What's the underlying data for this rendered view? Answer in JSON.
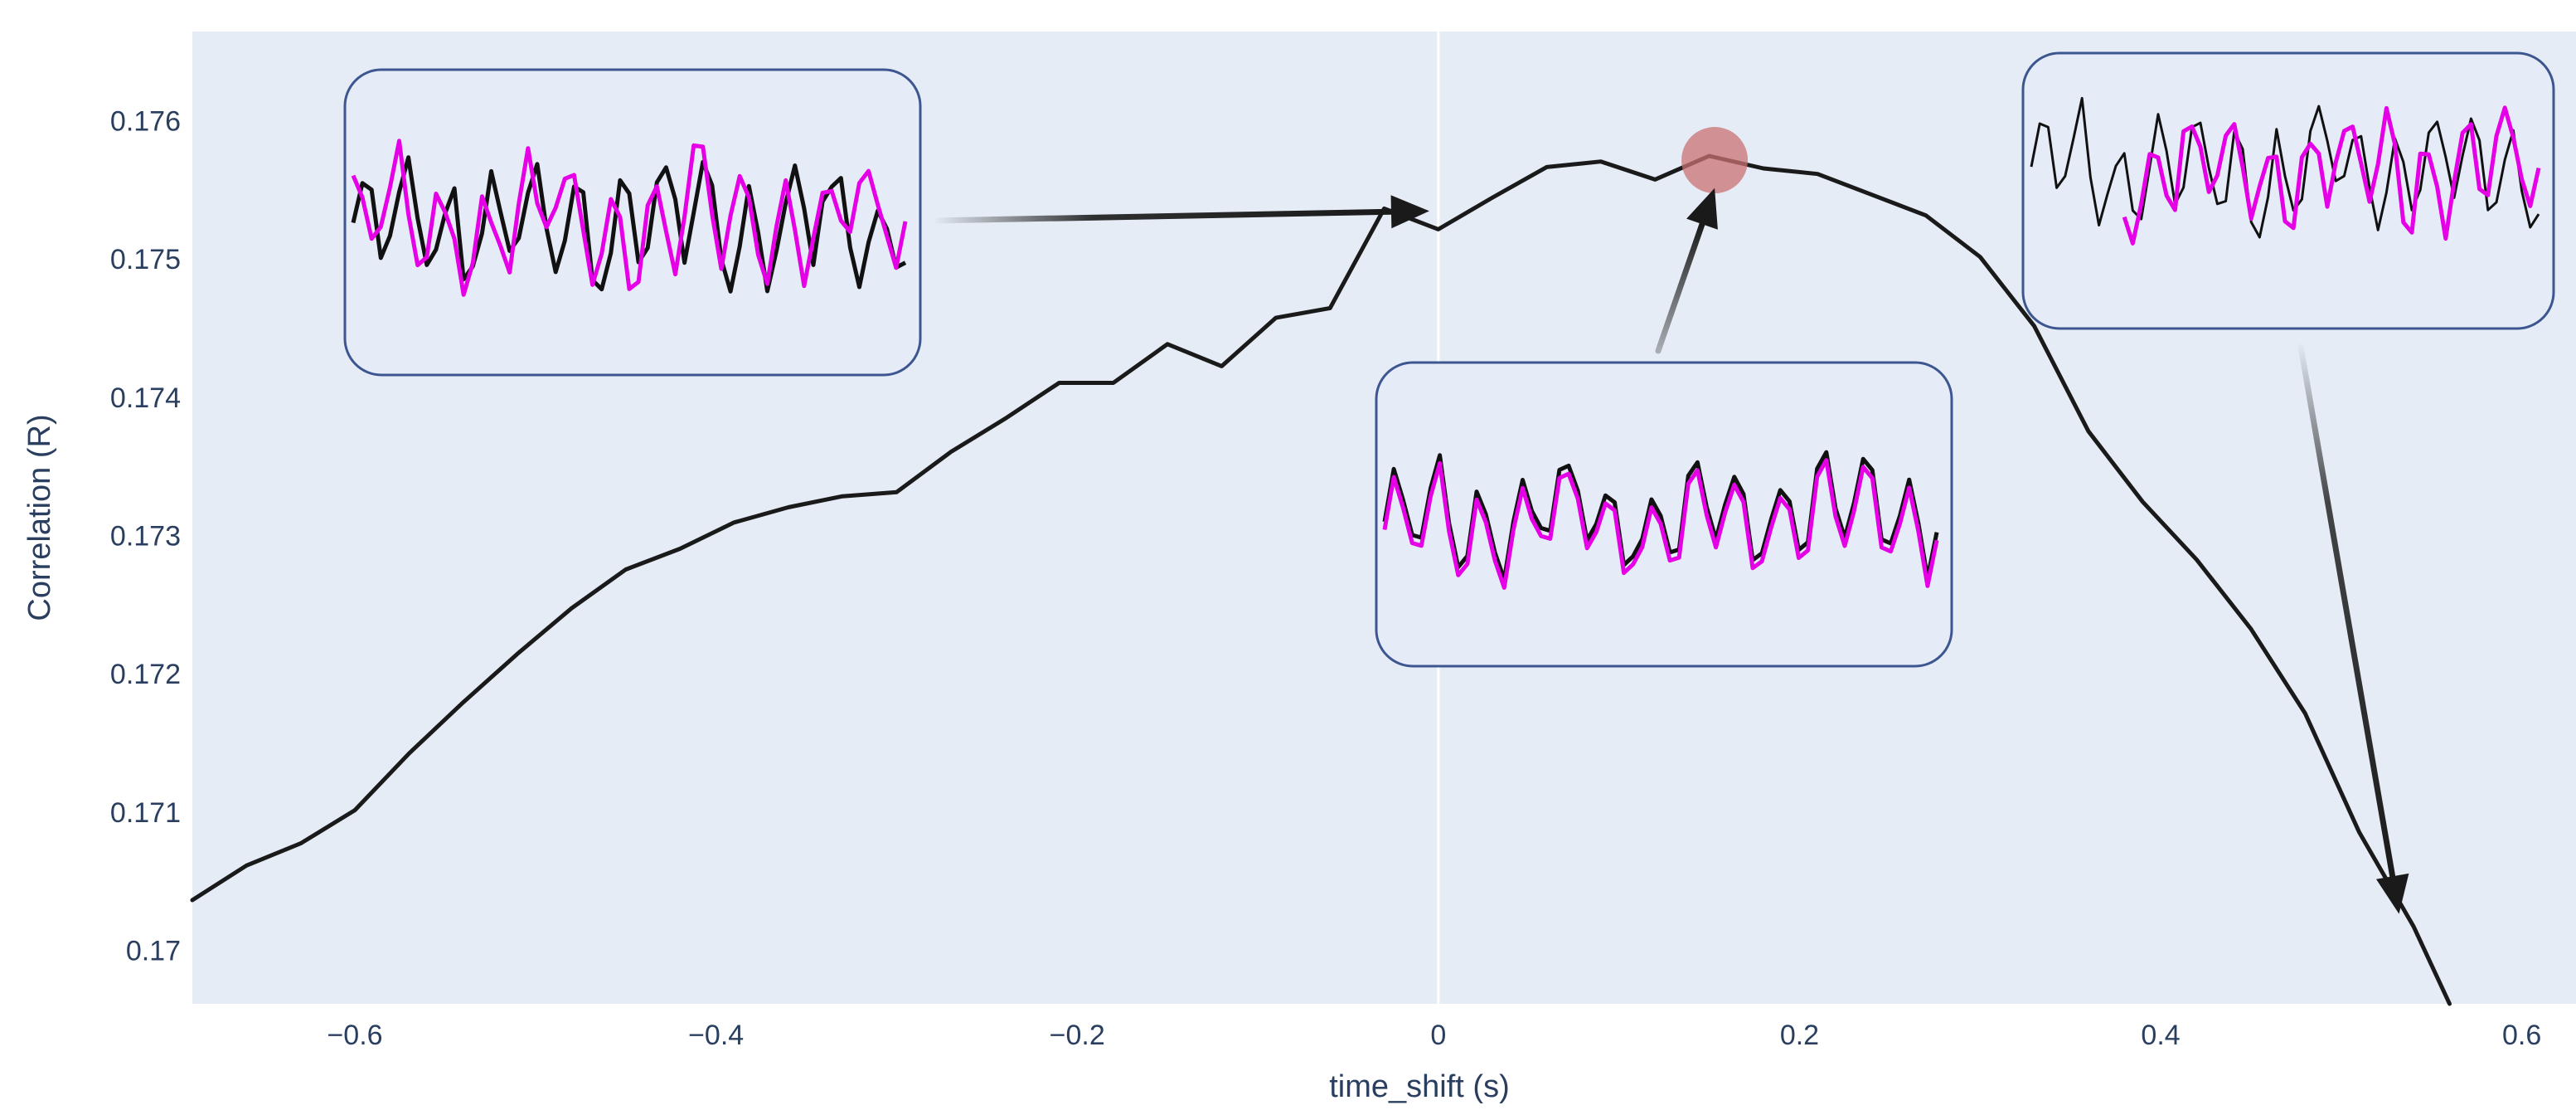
{
  "chart_data": {
    "type": "line",
    "title": "",
    "xlabel": "time_shift (s)",
    "ylabel": "Correlation (R)",
    "xlim": [
      -0.69,
      0.63
    ],
    "ylim": [
      0.16962,
      0.17665
    ],
    "grid": true,
    "background": "#e5ecf6",
    "line_color": "#1a1a1a",
    "x_ticks": [
      {
        "value": -0.6,
        "label": "−0.6"
      },
      {
        "value": -0.4,
        "label": "−0.4"
      },
      {
        "value": -0.2,
        "label": "−0.2"
      },
      {
        "value": 0,
        "label": "0"
      },
      {
        "value": 0.2,
        "label": "0.2"
      },
      {
        "value": 0.4,
        "label": "0.4"
      },
      {
        "value": 0.6,
        "label": "0.6"
      }
    ],
    "y_ticks": [
      {
        "value": 0.17,
        "label": "0.17"
      },
      {
        "value": 0.171,
        "label": "0.171"
      },
      {
        "value": 0.172,
        "label": "0.172"
      },
      {
        "value": 0.173,
        "label": "0.173"
      },
      {
        "value": 0.174,
        "label": "0.174"
      },
      {
        "value": 0.175,
        "label": "0.175"
      },
      {
        "value": 0.176,
        "label": "0.176"
      }
    ],
    "series": [
      {
        "x": [
          -0.69,
          -0.66,
          -0.63,
          -0.6,
          -0.57,
          -0.54,
          -0.51,
          -0.48,
          -0.45,
          -0.42,
          -0.39,
          -0.36,
          -0.33,
          -0.3,
          -0.27,
          -0.24,
          -0.21,
          -0.18,
          -0.15,
          -0.12,
          -0.09,
          -0.06,
          -0.03,
          0,
          0.03,
          0.06,
          0.09,
          0.12,
          0.15,
          0.18,
          0.21,
          0.24,
          0.27,
          0.3,
          0.33,
          0.36,
          0.39,
          0.42,
          0.45,
          0.48,
          0.51,
          0.54,
          0.56
        ],
        "y": [
          0.17037,
          0.17062,
          0.17078,
          0.17102,
          0.17143,
          0.1718,
          0.17215,
          0.17248,
          0.17276,
          0.17291,
          0.1731,
          0.17321,
          0.17329,
          0.17332,
          0.17361,
          0.17385,
          0.17411,
          0.17411,
          0.17439,
          0.17423,
          0.17458,
          0.17465,
          0.17537,
          0.17522,
          0.17545,
          0.17567,
          0.17571,
          0.17558,
          0.17575,
          0.17566,
          0.17562,
          0.17547,
          0.17532,
          0.17502,
          0.17452,
          0.17376,
          0.17325,
          0.17283,
          0.17233,
          0.17172,
          0.17086,
          0.17018,
          0.16962
        ]
      }
    ],
    "highlight": {
      "x": 0.153,
      "y": 0.17572,
      "color": "#c97171"
    },
    "annotations": [
      {
        "name": "inset-left",
        "arrow_to": {
          "x": -0.005,
          "y": 0.17534
        }
      },
      {
        "name": "inset-middle",
        "arrow_to": {
          "x": 0.153,
          "y": 0.17565
        }
      },
      {
        "name": "inset-right",
        "arrow_to": {
          "x": 0.532,
          "y": 0.17027
        }
      }
    ]
  }
}
